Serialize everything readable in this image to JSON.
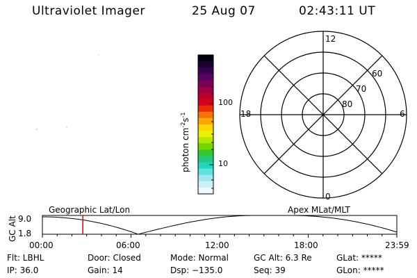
{
  "header": {
    "title": "Ultraviolet Imager",
    "date": "25 Aug 07",
    "time": "02:43:11 UT"
  },
  "colorbar": {
    "label_main": "photon cm",
    "label_exp1": "-2",
    "label_mid": "s",
    "label_exp2": "-1",
    "tick_100": "100",
    "tick_10": "10",
    "colors": [
      "#000010",
      "#1a0030",
      "#3a0050",
      "#5a0060",
      "#7a0058",
      "#9a0040",
      "#b80028",
      "#d6001a",
      "#ea3000",
      "#f07800",
      "#f8a800",
      "#f8d800",
      "#e8f000",
      "#b0e800",
      "#70d800",
      "#30c830",
      "#20c880",
      "#20d8c0",
      "#60e0e0",
      "#a0e8f0",
      "#d0f0f8",
      "#f0f8ff"
    ]
  },
  "polar": {
    "label_12": "12",
    "label_18": "18",
    "label_6": "6",
    "label_0": "0",
    "label_60": "60",
    "label_70": "70",
    "label_80": "80"
  },
  "orbit": {
    "y_axis_label": "GC Alt",
    "y_max": "9.0",
    "y_min": "1.8",
    "left_label": "Geographic Lat/Lon",
    "right_label": "Apex MLat/MLT",
    "time_ticks": [
      "00:00",
      "06:00",
      "12:00",
      "18:00",
      "23:59"
    ],
    "marker_fraction": 0.114
  },
  "footer": {
    "flt": "Flt: LBHL",
    "door": "Door: Closed",
    "mode": "Mode: Normal",
    "gc_alt": "GC Alt: 6.3 Re",
    "glat": "GLat: *****",
    "ip": "IP: 36.0",
    "gain": "Gain: 14",
    "dsp": "Dsp: −135.0",
    "seq": "Seq: 39",
    "glon": "GLon: *****"
  }
}
